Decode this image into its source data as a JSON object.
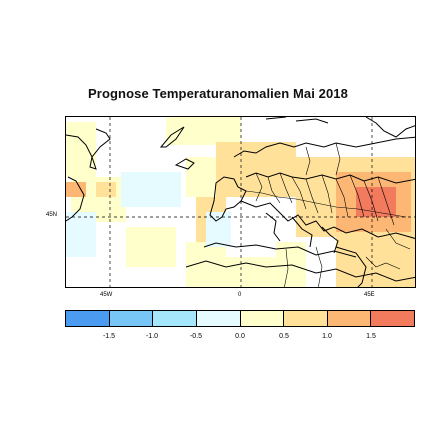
{
  "title": "Prognose Temperaturanomalien Mai 2018",
  "map": {
    "lon_labels": [
      "45W",
      "0",
      "45E"
    ],
    "lat_labels": [
      "45N"
    ]
  },
  "legend": {
    "colors": [
      "#4b9cf0",
      "#78c6f6",
      "#a6e6fb",
      "#e6fbff",
      "#ffffcc",
      "#ffe19a",
      "#fdb774",
      "#f27b5e"
    ],
    "ticks": [
      "-1.5",
      "-1.0",
      "-0.5",
      "0.0",
      "0.5",
      "1.0",
      "1.5"
    ]
  }
}
